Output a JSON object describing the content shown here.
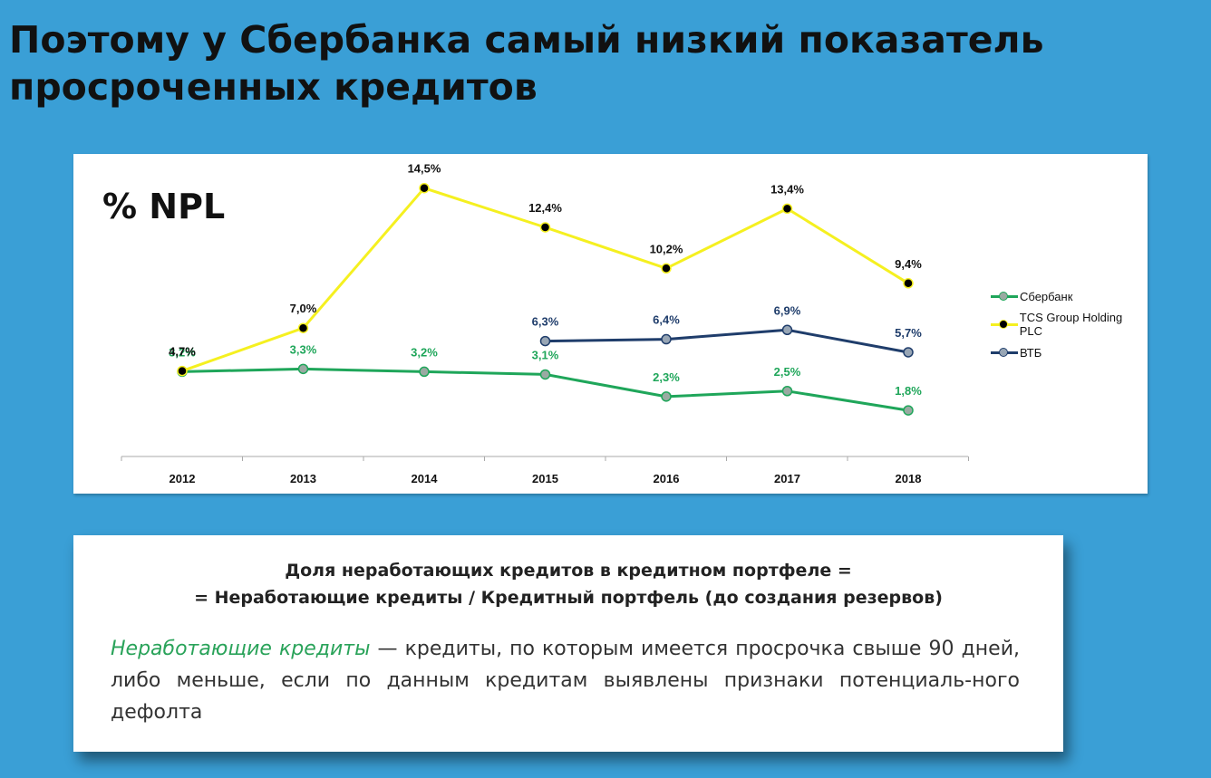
{
  "title": "Поэтому у Сбербанка самый низкий показатель просроченных кредитов",
  "chart_data": {
    "type": "line",
    "title": "% NPL",
    "categories": [
      "2012",
      "2013",
      "2014",
      "2015",
      "2016",
      "2017",
      "2018"
    ],
    "ylim": [
      0,
      16
    ],
    "grid": false,
    "legend_position": "right",
    "series": [
      {
        "name": "Сбербанк",
        "color": "#1fa65a",
        "marker_color": "#9aaaa2",
        "values": [
          3.2,
          3.3,
          3.2,
          3.1,
          2.3,
          2.5,
          1.8
        ],
        "labels": [
          "3,2%",
          "3,3%",
          "3,2%",
          "3,1%",
          "2,3%",
          "2,5%",
          "1,8%"
        ]
      },
      {
        "name": "TCS Group Holding PLC",
        "color": "#f5f020",
        "marker_color": "#000000",
        "values": [
          4.7,
          7.0,
          14.5,
          12.4,
          10.2,
          13.4,
          9.4
        ],
        "labels": [
          "4,7%",
          "7,0%",
          "14,5%",
          "12,4%",
          "10,2%",
          "13,4%",
          "9,4%"
        ]
      },
      {
        "name": "ВТБ",
        "color": "#1f3d6b",
        "marker_color": "#98a6b5",
        "values": [
          null,
          null,
          null,
          6.3,
          6.4,
          6.9,
          5.7
        ],
        "labels": [
          "",
          "",
          "",
          "6,3%",
          "6,4%",
          "6,9%",
          "5,7%"
        ]
      }
    ]
  },
  "definition": {
    "formula_line1": "Доля неработающих кредитов в кредитном портфеле =",
    "formula_line2": "= Неработающие кредиты / Кредитный портфель (до создания резервов)",
    "term": "Неработающие кредиты",
    "text": " — кредиты, по которым имеется просрочка свыше 90 дней, либо меньше, если по данным кредитам выявлены признаки потенциаль-ного дефолта"
  }
}
